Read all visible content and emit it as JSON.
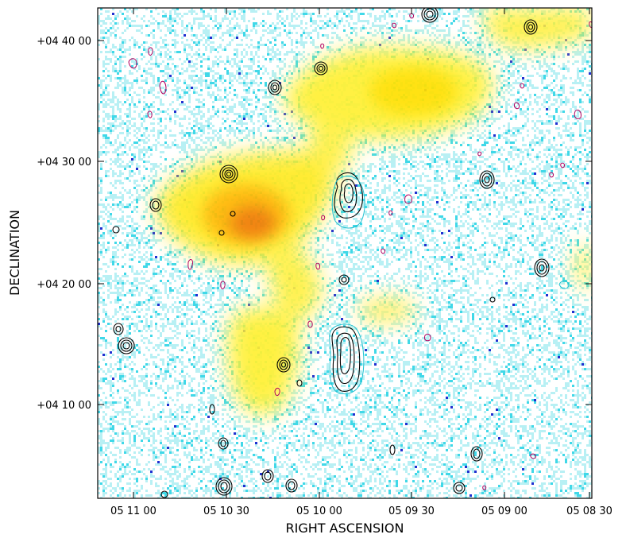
{
  "chart_data": {
    "type": "heatmap",
    "title": "",
    "xlabel": "RIGHT ASCENSION",
    "ylabel": "DECLINATION",
    "x_ticks": [
      "05 11 00",
      "05 10 30",
      "05 10 00",
      "05 09 30",
      "05 09 00",
      "05 08 30"
    ],
    "y_ticks": [
      "+04 40 00",
      "+04 30 00",
      "+04 20 00",
      "+04 10 00"
    ],
    "colors": {
      "background": "#ffffff",
      "noise_light": "#b8f0f4",
      "noise_cyan": "#40d8e8",
      "noise_blue": "#2030d0",
      "diffuse_low": "#ffff40",
      "diffuse_mid": "#ffd000",
      "diffuse_high": "#f07000",
      "contour_black": "#000000",
      "contour_cyan": "#20c0d0",
      "contour_magenta": "#b00060"
    }
  }
}
